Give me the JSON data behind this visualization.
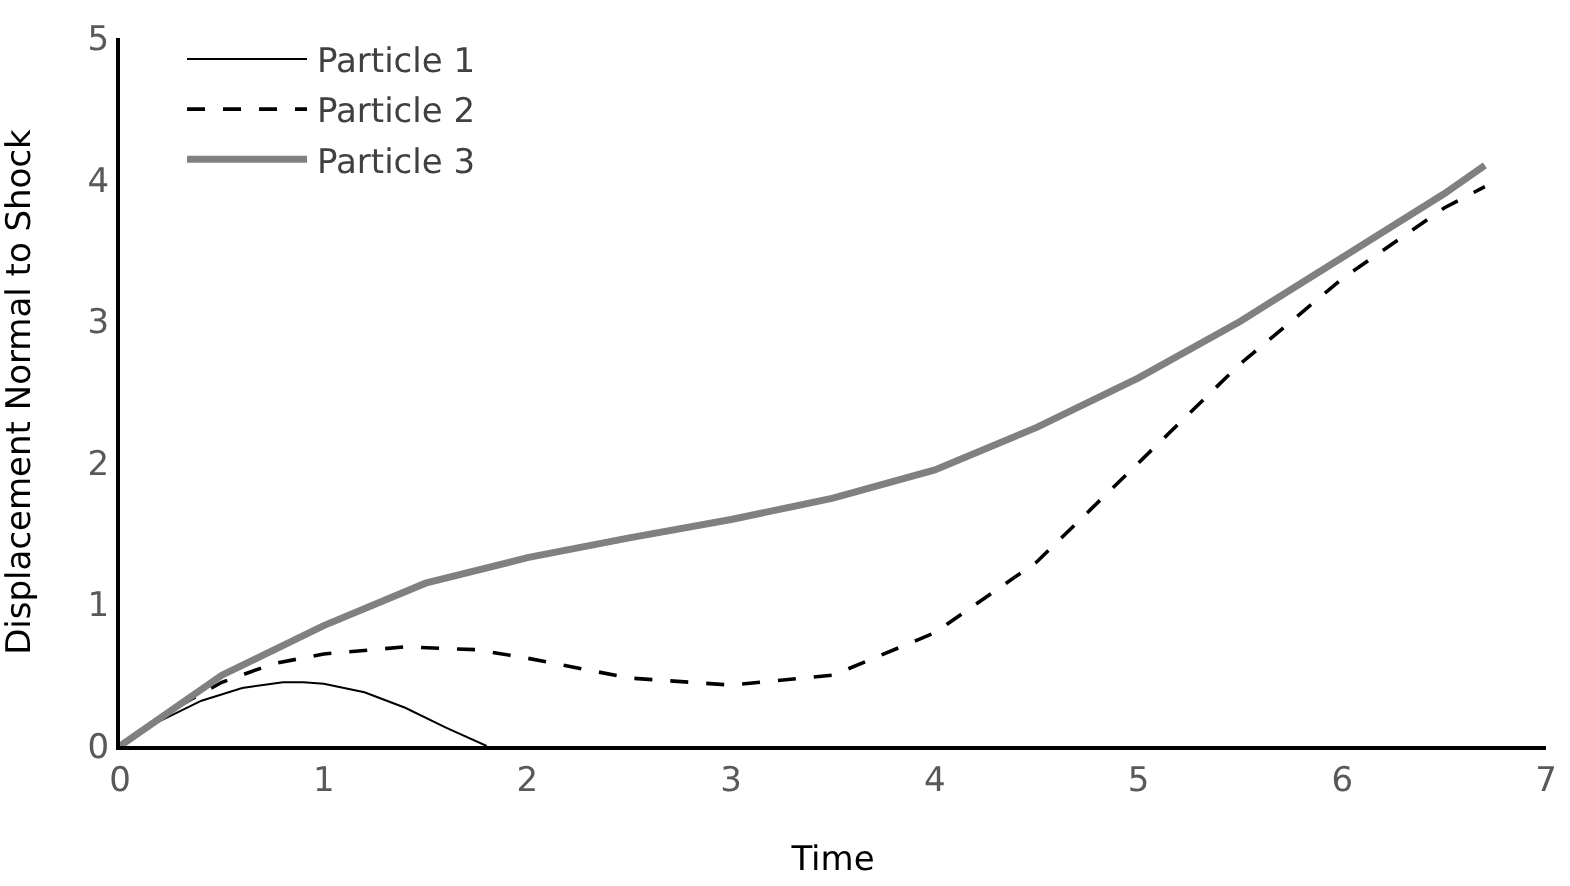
{
  "chart_data": {
    "type": "line",
    "xlabel": "Time",
    "ylabel": "Displacement Normal to Shock",
    "xlim": [
      0,
      7
    ],
    "ylim": [
      0,
      5
    ],
    "xticks": [
      0,
      1,
      2,
      3,
      4,
      5,
      6,
      7
    ],
    "yticks": [
      0,
      1,
      2,
      3,
      4,
      5
    ],
    "grid": false,
    "legend": "top left",
    "marker": "none",
    "series": [
      {
        "name": "Particle 1",
        "color": "#000000",
        "line_style": "solid",
        "x": [
          0,
          0.2,
          0.4,
          0.6,
          0.8,
          0.9,
          1.0,
          1.2,
          1.4,
          1.6,
          1.8
        ],
        "values": [
          0,
          0.18,
          0.32,
          0.41,
          0.45,
          0.45,
          0.44,
          0.38,
          0.27,
          0.13,
          0
        ]
      },
      {
        "name": "Particle 2",
        "color": "#000000",
        "line_style": "dashed",
        "x": [
          0,
          0.25,
          0.5,
          0.75,
          1,
          1.4,
          1.75,
          2,
          2.5,
          3,
          3.5,
          4,
          4.5,
          5,
          5.5,
          6,
          6.5,
          6.7
        ],
        "values": [
          0,
          0.25,
          0.45,
          0.58,
          0.65,
          0.7,
          0.68,
          0.62,
          0.48,
          0.43,
          0.5,
          0.8,
          1.3,
          2.0,
          2.7,
          3.3,
          3.8,
          3.95
        ]
      },
      {
        "name": "Particle 3",
        "color": "#808080",
        "line_style": "solid",
        "x": [
          0,
          0.5,
          1,
          1.5,
          2,
          2.5,
          3,
          3.5,
          4,
          4.5,
          5,
          5.5,
          6,
          6.5,
          6.7
        ],
        "values": [
          0,
          0.5,
          0.85,
          1.15,
          1.33,
          1.47,
          1.6,
          1.75,
          1.95,
          2.25,
          2.6,
          3.0,
          3.45,
          3.9,
          4.1
        ]
      }
    ]
  }
}
